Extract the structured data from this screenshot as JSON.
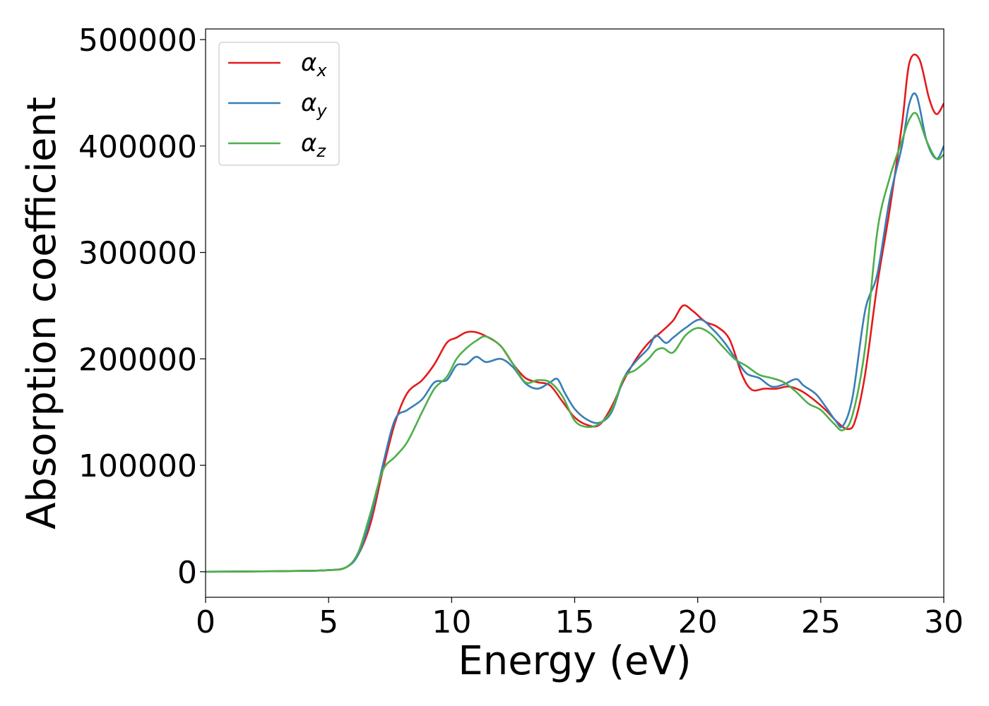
{
  "chart_data": {
    "type": "line",
    "title": "",
    "xlabel": "Energy (eV)",
    "ylabel": "Absorption coefficient",
    "xlim": [
      0,
      30
    ],
    "ylim": [
      -24000,
      510000
    ],
    "xticks": [
      0,
      5,
      10,
      15,
      20,
      25,
      30
    ],
    "xtick_labels": [
      "0",
      "5",
      "10",
      "15",
      "20",
      "25",
      "30"
    ],
    "yticks": [
      0,
      100000,
      200000,
      300000,
      400000,
      500000
    ],
    "ytick_labels": [
      "0",
      "100000",
      "200000",
      "300000",
      "400000",
      "500000"
    ],
    "grid": false,
    "legend_position": "upper-left",
    "series": [
      {
        "name": "αx",
        "symbol": "α",
        "subscript": "x",
        "color": "#e41a1c",
        "points": [
          [
            0,
            0
          ],
          [
            2,
            300
          ],
          [
            4,
            800
          ],
          [
            5,
            1500
          ],
          [
            5.7,
            4000
          ],
          [
            6.2,
            16000
          ],
          [
            6.7,
            45000
          ],
          [
            7.2,
            95000
          ],
          [
            7.7,
            140000
          ],
          [
            8.2,
            168000
          ],
          [
            8.8,
            180000
          ],
          [
            9.3,
            195000
          ],
          [
            9.8,
            215000
          ],
          [
            10.2,
            220000
          ],
          [
            10.6,
            225000
          ],
          [
            11,
            225000
          ],
          [
            11.5,
            220000
          ],
          [
            12,
            212000
          ],
          [
            12.5,
            195000
          ],
          [
            13,
            182000
          ],
          [
            13.5,
            178000
          ],
          [
            14,
            175000
          ],
          [
            14.5,
            160000
          ],
          [
            15,
            145000
          ],
          [
            15.5,
            138000
          ],
          [
            16,
            138000
          ],
          [
            16.5,
            155000
          ],
          [
            17,
            180000
          ],
          [
            17.5,
            200000
          ],
          [
            18,
            215000
          ],
          [
            18.5,
            225000
          ],
          [
            19,
            236000
          ],
          [
            19.4,
            250000
          ],
          [
            19.8,
            245000
          ],
          [
            20.3,
            235000
          ],
          [
            20.8,
            230000
          ],
          [
            21.3,
            218000
          ],
          [
            21.8,
            185000
          ],
          [
            22.2,
            171000
          ],
          [
            22.7,
            172000
          ],
          [
            23.2,
            172000
          ],
          [
            23.7,
            174000
          ],
          [
            24.2,
            170000
          ],
          [
            24.7,
            162000
          ],
          [
            25.2,
            152000
          ],
          [
            25.7,
            140000
          ],
          [
            26.1,
            134000
          ],
          [
            26.4,
            142000
          ],
          [
            26.8,
            185000
          ],
          [
            27.3,
            270000
          ],
          [
            27.8,
            340000
          ],
          [
            28.3,
            420000
          ],
          [
            28.6,
            478000
          ],
          [
            29,
            482000
          ],
          [
            29.4,
            445000
          ],
          [
            29.7,
            430000
          ],
          [
            30,
            440000
          ]
        ]
      },
      {
        "name": "αy",
        "symbol": "α",
        "subscript": "y",
        "color": "#377eb8",
        "points": [
          [
            0,
            0
          ],
          [
            2,
            300
          ],
          [
            4,
            800
          ],
          [
            5,
            1500
          ],
          [
            5.7,
            4000
          ],
          [
            6.2,
            16000
          ],
          [
            6.7,
            50000
          ],
          [
            7.2,
            100000
          ],
          [
            7.7,
            143000
          ],
          [
            8.2,
            152000
          ],
          [
            8.8,
            162000
          ],
          [
            9.3,
            178000
          ],
          [
            9.8,
            180000
          ],
          [
            10.2,
            194000
          ],
          [
            10.6,
            195000
          ],
          [
            11,
            202000
          ],
          [
            11.4,
            197000
          ],
          [
            12,
            200000
          ],
          [
            12.5,
            192000
          ],
          [
            13,
            177000
          ],
          [
            13.5,
            172000
          ],
          [
            14,
            178000
          ],
          [
            14.3,
            181000
          ],
          [
            14.6,
            168000
          ],
          [
            15,
            153000
          ],
          [
            15.5,
            143000
          ],
          [
            16,
            140000
          ],
          [
            16.5,
            150000
          ],
          [
            17,
            182000
          ],
          [
            17.5,
            198000
          ],
          [
            18,
            210000
          ],
          [
            18.3,
            222000
          ],
          [
            18.7,
            215000
          ],
          [
            19,
            220000
          ],
          [
            19.5,
            229000
          ],
          [
            20.1,
            237000
          ],
          [
            20.6,
            228000
          ],
          [
            21.1,
            215000
          ],
          [
            21.6,
            198000
          ],
          [
            22,
            186000
          ],
          [
            22.5,
            182000
          ],
          [
            23,
            174000
          ],
          [
            23.5,
            176000
          ],
          [
            24,
            181000
          ],
          [
            24.3,
            175000
          ],
          [
            24.8,
            167000
          ],
          [
            25.2,
            155000
          ],
          [
            25.6,
            142000
          ],
          [
            25.9,
            137000
          ],
          [
            26.3,
            165000
          ],
          [
            26.8,
            245000
          ],
          [
            27.3,
            280000
          ],
          [
            27.8,
            350000
          ],
          [
            28.3,
            400000
          ],
          [
            28.6,
            440000
          ],
          [
            28.9,
            447000
          ],
          [
            29.3,
            405000
          ],
          [
            29.7,
            388000
          ],
          [
            30,
            400000
          ]
        ]
      },
      {
        "name": "αz",
        "symbol": "α",
        "subscript": "z",
        "color": "#4daf4a",
        "points": [
          [
            0,
            0
          ],
          [
            2,
            300
          ],
          [
            4,
            800
          ],
          [
            5,
            1500
          ],
          [
            5.7,
            4000
          ],
          [
            6.2,
            18000
          ],
          [
            6.7,
            55000
          ],
          [
            7.2,
            95000
          ],
          [
            7.7,
            108000
          ],
          [
            8.2,
            122000
          ],
          [
            8.8,
            150000
          ],
          [
            9.3,
            172000
          ],
          [
            9.8,
            183000
          ],
          [
            10.2,
            200000
          ],
          [
            10.6,
            210000
          ],
          [
            11,
            217000
          ],
          [
            11.4,
            221000
          ],
          [
            12,
            212000
          ],
          [
            12.5,
            195000
          ],
          [
            13,
            178000
          ],
          [
            13.5,
            180000
          ],
          [
            14,
            178000
          ],
          [
            14.5,
            165000
          ],
          [
            15,
            142000
          ],
          [
            15.5,
            136000
          ],
          [
            16,
            139000
          ],
          [
            16.5,
            152000
          ],
          [
            17,
            182000
          ],
          [
            17.5,
            190000
          ],
          [
            18,
            200000
          ],
          [
            18.3,
            208000
          ],
          [
            18.6,
            210000
          ],
          [
            19,
            206000
          ],
          [
            19.5,
            222000
          ],
          [
            20,
            229000
          ],
          [
            20.5,
            224000
          ],
          [
            21,
            212000
          ],
          [
            21.5,
            200000
          ],
          [
            22,
            193000
          ],
          [
            22.5,
            185000
          ],
          [
            23,
            182000
          ],
          [
            23.5,
            178000
          ],
          [
            24,
            169000
          ],
          [
            24.5,
            158000
          ],
          [
            25,
            152000
          ],
          [
            25.5,
            140000
          ],
          [
            25.9,
            133000
          ],
          [
            26.3,
            148000
          ],
          [
            26.8,
            210000
          ],
          [
            27.3,
            320000
          ],
          [
            27.8,
            370000
          ],
          [
            28.3,
            405000
          ],
          [
            28.6,
            425000
          ],
          [
            28.9,
            430000
          ],
          [
            29.3,
            405000
          ],
          [
            29.7,
            388000
          ],
          [
            30,
            392000
          ]
        ]
      }
    ]
  }
}
